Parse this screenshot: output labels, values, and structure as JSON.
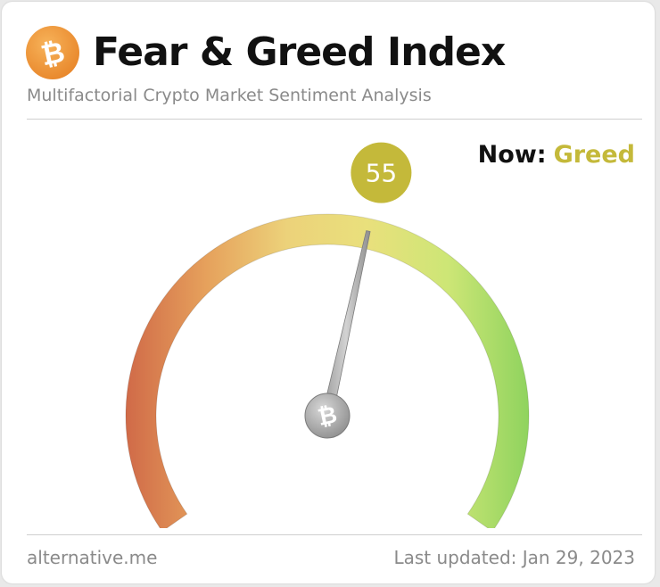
{
  "header": {
    "title": "Fear & Greed Index",
    "subtitle": "Multifactorial Crypto Market Sentiment Analysis",
    "logo_icon": "bitcoin-icon",
    "logo_glyph": "₿"
  },
  "status": {
    "now_label": "Now:",
    "classification": "Greed",
    "classification_color": "#c4b93a"
  },
  "gauge": {
    "value": 55,
    "value_text": "55",
    "min": 0,
    "max": 100,
    "badge_color": "#c4b93a",
    "hub_icon": "bitcoin-icon",
    "hub_glyph": "₿",
    "gradient_colors": [
      "#d06a48",
      "#e6a15c",
      "#ecd27a",
      "#e9e07c",
      "#cde676",
      "#8fd35e"
    ]
  },
  "footer": {
    "source": "alternative.me",
    "last_updated": "Last updated: Jan 29, 2023"
  },
  "colors": {
    "brand_orange": "#ef9a3a",
    "text_dark": "#111111",
    "text_muted": "#8a8a8a"
  }
}
